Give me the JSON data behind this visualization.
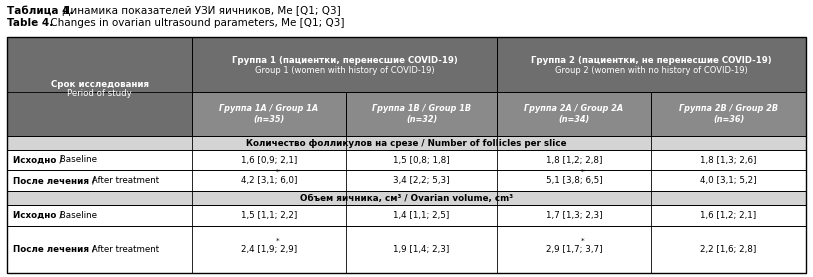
{
  "title_bold1": "Таблица 4.",
  "title_rest1": " Динамика показателей УЗИ яичников, Ме [Q1; Q3]",
  "title_bold2": "Table 4.",
  "title_rest2": " Changes in ovarian ultrasound parameters, Me [Q1; Q3]",
  "header_col0_line1": "Срок исследования",
  "header_col0_line2": "Period of study",
  "header_group1_line1": "Группа 1 (пациентки, перенесшие COVID-19)",
  "header_group1_line2": "Group 1 (women with history of COVID-19)",
  "header_group2_line1": "Группа 2 (пациентки, не перенесшие COVID-19)",
  "header_group2_line2": "Group 2 (women with no history of COVID-19)",
  "sub_1A": "Группа 1А / Group 1A\n(n=35)",
  "sub_1B": "Группа 1В / Group 1B\n(n=32)",
  "sub_2A": "Группа 2А / Group 2A\n(n=34)",
  "sub_2B": "Группа 2В / Group 2B\n(n=36)",
  "section1": "Количество фолликулов на срезе / Number of follicles per slice",
  "section2": "Объем яичника, см³ / Ovarian volume, cm³",
  "row_baseline": "Исходно / Baseline",
  "row_after": "После лечения / After treatment",
  "follicles_baseline": [
    "1,6 [0,9; 2,1]",
    "1,5 [0,8; 1,8]",
    "1,8 [1,2; 2,8]",
    "1,8 [1,3; 2,6]"
  ],
  "follicles_after": [
    "4,2 [3,1; 6,0]",
    "3,4 [2,2; 5,3]",
    "5,1 [3,8; 6,5]",
    "4,0 [3,1; 5,2]"
  ],
  "follicles_after_star": [
    true,
    false,
    true,
    false
  ],
  "volume_baseline": [
    "1,5 [1,1; 2,2]",
    "1,4 [1,1; 2,5]",
    "1,7 [1,3; 2,3]",
    "1,6 [1,2; 2,1]"
  ],
  "volume_after": [
    "2,4 [1,9; 2,9]",
    "1,9 [1,4; 2,3]",
    "2,9 [1,7; 3,7]",
    "2,2 [1,6; 2,8]"
  ],
  "volume_after_star": [
    true,
    false,
    true,
    false
  ],
  "color_header_dark": "#6e6e6e",
  "color_header_sub": "#8a8a8a",
  "color_section": "#d4d4d4",
  "color_white": "#ffffff",
  "color_black": "#000000",
  "color_text_white": "#ffffff"
}
